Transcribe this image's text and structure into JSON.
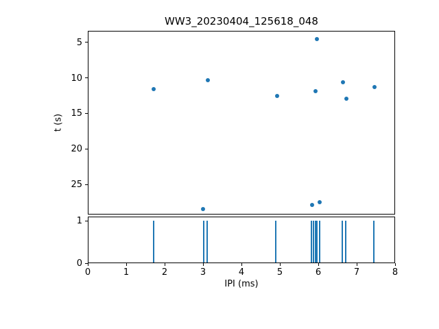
{
  "chart_data": {
    "type": "scatter",
    "title": "WW3_20230404_125618_048",
    "xlabel": "IPI (ms)",
    "xlim": [
      0,
      8
    ],
    "xticks": [
      0,
      1,
      2,
      3,
      4,
      5,
      6,
      7,
      8
    ],
    "accent_color": "#1f77b4",
    "top": {
      "ylabel": "t (s)",
      "y_inverted": true,
      "ylim": [
        3.4,
        29.2
      ],
      "yticks": [
        5,
        10,
        15,
        20,
        25
      ],
      "points": [
        [
          1.71,
          11.6
        ],
        [
          3.13,
          10.3
        ],
        [
          3.0,
          28.4
        ],
        [
          4.93,
          12.5
        ],
        [
          5.84,
          27.9
        ],
        [
          5.96,
          4.6
        ],
        [
          5.93,
          11.9
        ],
        [
          6.04,
          27.5
        ],
        [
          6.64,
          10.6
        ],
        [
          6.73,
          12.9
        ],
        [
          7.46,
          11.3
        ]
      ]
    },
    "bottom": {
      "ylim": [
        0,
        1.1
      ],
      "yticks": [
        0,
        1
      ],
      "spike_height": 1,
      "spikes_x": [
        1.72,
        3.02,
        3.1,
        4.9,
        5.82,
        5.87,
        5.92,
        5.97,
        6.04,
        6.62,
        6.71,
        7.45
      ]
    }
  }
}
